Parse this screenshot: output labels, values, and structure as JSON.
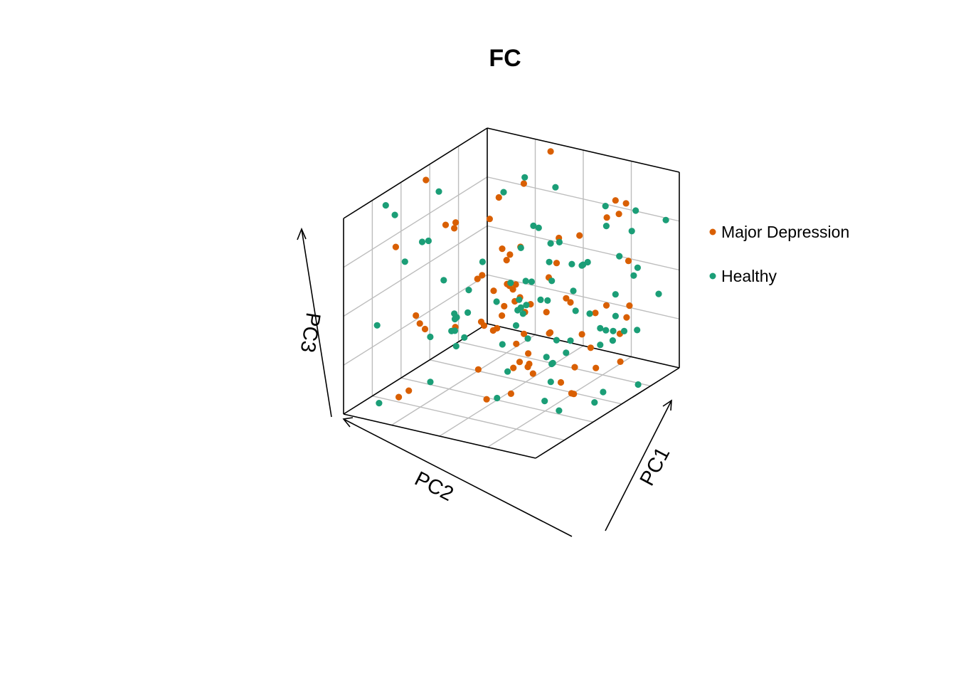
{
  "chart_data": {
    "type": "scatter",
    "title": "FC",
    "axes": {
      "x_label": "PC1",
      "y_label": "PC2",
      "z_label": "PC3"
    },
    "grid": true,
    "legend_position": "right",
    "series": [
      {
        "name": "Major Depression",
        "color": "#D95F02",
        "points": [
          [
            0.01,
            0.44,
            0.94
          ],
          [
            0.36,
            0.04,
            0.98
          ],
          [
            0.12,
            0.45,
            0.74
          ],
          [
            0.18,
            0.16,
            0.76
          ],
          [
            0.75,
            0.11,
            0.85
          ],
          [
            0.82,
            0.13,
            0.86
          ],
          [
            0.94,
            0.34,
            0.93
          ],
          [
            0.28,
            0.41,
            0.5
          ],
          [
            0.4,
            0.4,
            0.6
          ],
          [
            0.35,
            0.35,
            0.33
          ],
          [
            0.16,
            0.11,
            0.47
          ],
          [
            0.56,
            0.25,
            0.68
          ],
          [
            0.71,
            0.37,
            0.44
          ],
          [
            0.42,
            0.33,
            0.64
          ],
          [
            0.26,
            0.37,
            0.22
          ],
          [
            0.29,
            0.32,
            0.19
          ],
          [
            0.69,
            0.64,
            0.23
          ],
          [
            0.59,
            0.61,
            0.59
          ],
          [
            0.94,
            0.33,
            0.17
          ],
          [
            0.81,
            0.6,
            0.77
          ],
          [
            0.44,
            0.63,
            0.4
          ],
          [
            0.5,
            0.24,
            0.46
          ],
          [
            0.71,
            0.29,
            0.24
          ],
          [
            0.78,
            0.12,
            0.18
          ],
          [
            0.35,
            0.53,
            0.09
          ],
          [
            0.52,
            0.54,
            0.56
          ],
          [
            0.6,
            0.16,
            0.66
          ],
          [
            0.51,
            0.5,
            0.12
          ],
          [
            0.44,
            0.36,
            0.4
          ],
          [
            0.45,
            0.67,
            0.64
          ],
          [
            0.64,
            0.63,
            0.24
          ],
          [
            0.63,
            0.43,
            0.4
          ],
          [
            0.81,
            0.33,
            0.39
          ],
          [
            0.5,
            0.47,
            0.53
          ],
          [
            0.39,
            0.09,
            0.08
          ],
          [
            0.43,
            0.53,
            0.51
          ],
          [
            0.72,
            0.45,
            0.07
          ],
          [
            0.91,
            0.63,
            0.14
          ],
          [
            0.12,
            0.38,
            0.72
          ],
          [
            0.81,
            0.1,
            0.55
          ],
          [
            0.57,
            0.47,
            0.14
          ],
          [
            0.07,
            0.59,
            0.33
          ],
          [
            0.61,
            0.65,
            0.08
          ],
          [
            0.25,
            0.95,
            0.12
          ],
          [
            0.7,
            0.68,
            0.42
          ],
          [
            0.24,
            0.79,
            0.42
          ],
          [
            0.15,
            0.43,
            0.72
          ],
          [
            0.66,
            0.68,
            0.36
          ],
          [
            0.51,
            0.38,
            0.39
          ],
          [
            0.61,
            0.53,
            0.23
          ],
          [
            0.92,
            0.51,
            0.32
          ],
          [
            0.36,
            0.44,
            0.25
          ],
          [
            0.42,
            0.37,
            0.38
          ],
          [
            0.74,
            0.44,
            0.5
          ],
          [
            0.6,
            0.7,
            0.5
          ],
          [
            0.19,
            0.8,
            0.07
          ],
          [
            0.05,
            0.05,
            0.57
          ],
          [
            0.86,
            0.16,
            0.36
          ],
          [
            0.56,
            0.43,
            0.07
          ],
          [
            0.74,
            0.38,
            0.12
          ],
          [
            0.83,
            0.28,
            0.41
          ],
          [
            0.29,
            0.61,
            0.33
          ],
          [
            0.92,
            0.26,
            0.36
          ],
          [
            0.08,
            0.54,
            0.24
          ],
          [
            0.61,
            0.82,
            0.13
          ],
          [
            0.65,
            0.43,
            0.3
          ],
          [
            0.69,
            0.09,
            0.74
          ],
          [
            0.75,
            0.74,
            0.57
          ],
          [
            0.78,
            0.44,
            0.02
          ],
          [
            0.32,
            0.27,
            0.55
          ],
          [
            0.73,
            0.22,
            0.04
          ],
          [
            0.04,
            0.69,
            0.72
          ],
          [
            0.44,
            0.45,
            0.51
          ],
          [
            0.31,
            0.16,
            0.86
          ]
        ]
      },
      {
        "name": "Healthy",
        "color": "#1B9E77",
        "points": [
          [
            0.01,
            0.72,
            0.94
          ],
          [
            0.96,
            0.25,
            0.91
          ],
          [
            0.2,
            0.84,
            0.75
          ],
          [
            0.9,
            0.38,
            0.98
          ],
          [
            0.37,
            0.02,
            0.79
          ],
          [
            0.77,
            0.43,
            0.54
          ],
          [
            0.71,
            0.5,
            0.61
          ],
          [
            0.54,
            0.22,
            0.64
          ],
          [
            0.51,
            0.46,
            0.45
          ],
          [
            0.84,
            0.41,
            0.43
          ],
          [
            0.36,
            0.04,
            0.51
          ],
          [
            0.16,
            0.43,
            0.12
          ],
          [
            0.68,
            0.08,
            0.69
          ],
          [
            0.8,
            0.49,
            0.32
          ],
          [
            0.83,
            0.19,
            0.62
          ],
          [
            0.82,
            0.09,
            0.7
          ],
          [
            0.14,
            0.49,
            0.48
          ],
          [
            0.19,
            0.14,
            0.78
          ],
          [
            0.5,
            0.6,
            0.01
          ],
          [
            0.21,
            0.44,
            0.18
          ],
          [
            0.71,
            0.25,
            0.59
          ],
          [
            0.25,
            0.1,
            0.49
          ],
          [
            0.42,
            0.13,
            0.47
          ],
          [
            0.35,
            0.11,
            0.62
          ],
          [
            0.91,
            0.17,
            0.57
          ],
          [
            0.85,
            0.35,
            0.33
          ],
          [
            0.72,
            0.48,
            0.3
          ],
          [
            0.67,
            0.07,
            0.15
          ],
          [
            0.63,
            0.43,
            0.17
          ],
          [
            0.52,
            0.08,
            0.22
          ],
          [
            0.87,
            0.27,
            0.36
          ],
          [
            0.28,
            0.14,
            0.21
          ],
          [
            0.75,
            0.11,
            0.37
          ],
          [
            0.45,
            0.23,
            0.33
          ],
          [
            0.33,
            0.12,
            0.63
          ],
          [
            0.3,
            0.63,
            0.41
          ],
          [
            0.4,
            0.47,
            0.42
          ],
          [
            0.82,
            0.31,
            0.22
          ],
          [
            0.66,
            0.72,
            0.69
          ],
          [
            0.61,
            0.71,
            0.36
          ],
          [
            0.25,
            0.47,
            0.33
          ],
          [
            0.91,
            0.47,
            0.02
          ],
          [
            0.24,
            0.06,
            0.83
          ],
          [
            0.86,
            0.13,
            0.5
          ],
          [
            0.1,
            0.9,
            0.43
          ],
          [
            0.71,
            0.64,
            0.67
          ],
          [
            0.84,
            0.17,
            0.23
          ],
          [
            0.51,
            0.41,
            0.4
          ],
          [
            0.9,
            0.01,
            0.36
          ],
          [
            0.41,
            0.28,
            0.44
          ],
          [
            0.69,
            0.48,
            0.08
          ],
          [
            0.24,
            0.57,
            0.28
          ],
          [
            0.85,
            0.47,
            0.71
          ],
          [
            0.99,
            0.08,
            0.79
          ],
          [
            0.96,
            0.41,
            0.32
          ],
          [
            0.83,
            0.71,
            0.12
          ],
          [
            0.26,
            0.56,
            0.35
          ],
          [
            0.43,
            0.8,
            0.49
          ],
          [
            0.14,
            0.94,
            0.06
          ],
          [
            0.88,
            0.37,
            0.02
          ],
          [
            0.59,
            0.2,
            0.53
          ],
          [
            0.74,
            0.74,
            0.56
          ],
          [
            0.86,
            0.65,
            0.05
          ],
          [
            0.99,
            0.28,
            0.32
          ],
          [
            0.11,
            0.6,
            0.72
          ],
          [
            0.27,
            0.77,
            0.84
          ],
          [
            0.1,
            0.53,
            0.2
          ],
          [
            0.94,
            0.38,
            0.35
          ],
          [
            0.62,
            0.38,
            0.11
          ],
          [
            0.33,
            0.57,
            0.51
          ],
          [
            0.88,
            0.72,
            0.33
          ],
          [
            0.18,
            0.04,
            0.05
          ],
          [
            0.66,
            0.6,
            0.35
          ],
          [
            0.51,
            0.54,
            0.12
          ],
          [
            0.98,
            0.26,
            0.03
          ],
          [
            0.37,
            0.72,
            0.38
          ],
          [
            0.53,
            0.05,
            0.44
          ],
          [
            0.16,
            0.61,
            0.02
          ],
          [
            0.02,
            0.67,
            0.87
          ],
          [
            0.39,
            0.31,
            0.3
          ],
          [
            0.92,
            0.81,
            0.7
          ],
          [
            0.07,
            0.43,
            0.89
          ],
          [
            0.2,
            0.3,
            0.5
          ],
          [
            0.56,
            0.2,
            0.07
          ]
        ]
      }
    ]
  }
}
